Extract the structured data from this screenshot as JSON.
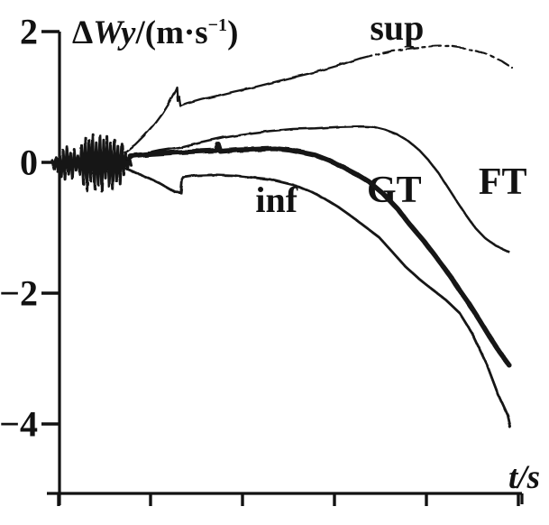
{
  "figure": {
    "background_color": "#ffffff",
    "ink_color": "#121212",
    "description": "Scanned line chart of velocity error bounds over time"
  },
  "chart_data": {
    "type": "line",
    "title": "ΔWy/(m·s⁻¹)",
    "title_parts": {
      "delta": "Δ",
      "variable": "Wy",
      "unit_pre": "/(m·s",
      "exponent": "−1",
      "unit_post": ")"
    },
    "xlabel": "t/s",
    "xlabel_parts": {
      "variable": "t",
      "unit": "/s"
    },
    "ylabel": "ΔWy/(m·s⁻¹)",
    "xlim": [
      -0.13,
      5.33
    ],
    "ylim": [
      -5.2,
      2.05
    ],
    "grid": false,
    "legend": "none (inline curve labels)",
    "x_axis": {
      "ticks": [
        0,
        1,
        2,
        3,
        4,
        5
      ],
      "tick_labels_shown": false
    },
    "y_axis": {
      "ticks": [
        {
          "v": 2,
          "label": "2"
        },
        {
          "v": 0,
          "label": "0"
        },
        {
          "v": -2,
          "label": "−2"
        },
        {
          "v": -4,
          "label": "−4"
        }
      ]
    },
    "series": [
      {
        "name": "noise",
        "role": "initial-noise-burst",
        "stroke_width": 3,
        "dash": "",
        "points": [
          [
            -0.07,
            0.03
          ],
          [
            -0.05,
            -0.1
          ],
          [
            -0.03,
            0.08
          ],
          [
            -0.01,
            -0.14
          ],
          [
            0.01,
            0.1
          ],
          [
            0.03,
            -0.22
          ],
          [
            0.05,
            0.18
          ],
          [
            0.07,
            -0.26
          ],
          [
            0.09,
            0.24
          ],
          [
            0.11,
            -0.18
          ],
          [
            0.13,
            0.14
          ],
          [
            0.15,
            -0.25
          ],
          [
            0.17,
            0.2
          ],
          [
            0.19,
            -0.12
          ],
          [
            0.21,
            0.1
          ],
          [
            0.23,
            -0.18
          ],
          [
            0.25,
            0.26
          ],
          [
            0.27,
            -0.33
          ],
          [
            0.29,
            0.38
          ],
          [
            0.31,
            -0.43
          ],
          [
            0.33,
            0.34
          ],
          [
            0.35,
            -0.28
          ],
          [
            0.37,
            0.43
          ],
          [
            0.39,
            -0.4
          ],
          [
            0.41,
            0.3
          ],
          [
            0.43,
            -0.34
          ],
          [
            0.45,
            0.41
          ],
          [
            0.47,
            -0.44
          ],
          [
            0.49,
            0.34
          ],
          [
            0.51,
            -0.24
          ],
          [
            0.53,
            0.39
          ],
          [
            0.55,
            -0.37
          ],
          [
            0.57,
            0.29
          ],
          [
            0.59,
            -0.41
          ],
          [
            0.61,
            0.34
          ],
          [
            0.63,
            -0.29
          ],
          [
            0.65,
            0.24
          ],
          [
            0.67,
            -0.33
          ],
          [
            0.69,
            0.28
          ],
          [
            0.71,
            -0.19
          ],
          [
            0.73,
            0.14
          ],
          [
            0.75,
            -0.11
          ],
          [
            0.77,
            0.08
          ],
          [
            0.79,
            -0.05
          ]
        ]
      },
      {
        "name": "sup",
        "role": "upper-bound",
        "stroke_width": 2.3,
        "dash": "",
        "points": [
          [
            0.72,
            0.15
          ],
          [
            0.83,
            0.27
          ],
          [
            0.93,
            0.41
          ],
          [
            1.03,
            0.57
          ],
          [
            1.13,
            0.76
          ],
          [
            1.21,
            0.94
          ],
          [
            1.27,
            1.1
          ],
          [
            1.285,
            1.15
          ],
          [
            1.295,
            0.94
          ],
          [
            1.31,
            1.01
          ],
          [
            1.325,
            0.86
          ],
          [
            1.4,
            0.9
          ],
          [
            1.55,
            0.96
          ],
          [
            1.7,
            1.01
          ],
          [
            1.9,
            1.08
          ],
          [
            2.1,
            1.14
          ],
          [
            2.3,
            1.21
          ],
          [
            2.55,
            1.3
          ],
          [
            2.79,
            1.38
          ],
          [
            3.04,
            1.48
          ],
          [
            3.28,
            1.59
          ]
        ]
      },
      {
        "name": "sup-tail",
        "role": "upper-bound-broken-stroke",
        "stroke_width": 2.3,
        "dash": "13 5 3 5",
        "points": [
          [
            3.28,
            1.59
          ],
          [
            3.45,
            1.65
          ],
          [
            3.62,
            1.7
          ],
          [
            3.8,
            1.74
          ],
          [
            3.95,
            1.76
          ],
          [
            4.1,
            1.775
          ],
          [
            4.25,
            1.78
          ],
          [
            4.4,
            1.75
          ],
          [
            4.55,
            1.7
          ],
          [
            4.7,
            1.63
          ],
          [
            4.82,
            1.55
          ],
          [
            4.93,
            1.45
          ]
        ]
      },
      {
        "name": "FT",
        "role": "estimate-curve",
        "stroke_width": 2.5,
        "dash": "",
        "points": [
          [
            0.74,
            0.05
          ],
          [
            0.9,
            0.12
          ],
          [
            1.1,
            0.18
          ],
          [
            1.32,
            0.23
          ],
          [
            1.55,
            0.31
          ],
          [
            1.81,
            0.39
          ],
          [
            2.06,
            0.44
          ],
          [
            2.3,
            0.48
          ],
          [
            2.55,
            0.51
          ],
          [
            2.79,
            0.52
          ],
          [
            3.04,
            0.54
          ],
          [
            3.28,
            0.55
          ],
          [
            3.43,
            0.54
          ],
          [
            3.55,
            0.5
          ],
          [
            3.68,
            0.43
          ],
          [
            3.8,
            0.33
          ],
          [
            3.92,
            0.19
          ],
          [
            4.02,
            0.04
          ],
          [
            4.12,
            -0.14
          ],
          [
            4.22,
            -0.35
          ],
          [
            4.32,
            -0.57
          ],
          [
            4.42,
            -0.78
          ],
          [
            4.53,
            -1.0
          ],
          [
            4.64,
            -1.16
          ],
          [
            4.76,
            -1.28
          ],
          [
            4.9,
            -1.37
          ]
        ]
      },
      {
        "name": "GT",
        "role": "reference-curve-thick",
        "stroke_width": 5.5,
        "dash": "",
        "points": [
          [
            0.78,
            0.1
          ],
          [
            1.0,
            0.13
          ],
          [
            1.25,
            0.15
          ],
          [
            1.5,
            0.17
          ],
          [
            1.71,
            0.18
          ],
          [
            1.735,
            0.28
          ],
          [
            1.76,
            0.17
          ],
          [
            1.95,
            0.19
          ],
          [
            2.15,
            0.2
          ],
          [
            2.35,
            0.21
          ],
          [
            2.5,
            0.19
          ],
          [
            2.65,
            0.15
          ],
          [
            2.79,
            0.11
          ],
          [
            2.94,
            0.03
          ],
          [
            3.09,
            -0.07
          ],
          [
            3.24,
            -0.18
          ],
          [
            3.38,
            -0.3
          ],
          [
            3.53,
            -0.48
          ],
          [
            3.68,
            -0.7
          ],
          [
            3.82,
            -0.95
          ],
          [
            3.97,
            -1.2
          ],
          [
            4.07,
            -1.38
          ],
          [
            4.22,
            -1.66
          ],
          [
            4.36,
            -1.95
          ],
          [
            4.46,
            -2.15
          ],
          [
            4.58,
            -2.42
          ],
          [
            4.68,
            -2.65
          ],
          [
            4.79,
            -2.89
          ],
          [
            4.9,
            -3.1
          ]
        ]
      },
      {
        "name": "inf",
        "role": "lower-bound",
        "stroke_width": 2.8,
        "dash": "",
        "points": [
          [
            0.74,
            -0.1
          ],
          [
            0.85,
            -0.17
          ],
          [
            0.98,
            -0.24
          ],
          [
            1.1,
            -0.32
          ],
          [
            1.2,
            -0.4
          ],
          [
            1.27,
            -0.455
          ],
          [
            1.33,
            -0.465
          ],
          [
            1.345,
            -0.23
          ],
          [
            1.5,
            -0.2
          ],
          [
            1.7,
            -0.19
          ],
          [
            1.9,
            -0.2
          ],
          [
            2.1,
            -0.23
          ],
          [
            2.3,
            -0.26
          ],
          [
            2.45,
            -0.31
          ],
          [
            2.6,
            -0.36
          ],
          [
            2.75,
            -0.45
          ],
          [
            2.89,
            -0.55
          ],
          [
            3.04,
            -0.68
          ],
          [
            3.19,
            -0.83
          ],
          [
            3.33,
            -0.98
          ],
          [
            3.48,
            -1.14
          ],
          [
            3.63,
            -1.37
          ],
          [
            3.77,
            -1.59
          ],
          [
            3.92,
            -1.78
          ],
          [
            4.05,
            -1.93
          ],
          [
            4.21,
            -2.1
          ],
          [
            4.36,
            -2.3
          ],
          [
            4.5,
            -2.62
          ],
          [
            4.66,
            -3.1
          ],
          [
            4.78,
            -3.55
          ],
          [
            4.88,
            -3.86
          ],
          [
            4.91,
            -4.05
          ]
        ]
      }
    ],
    "annotations": [
      {
        "text": "sup",
        "t": 3.68,
        "v": 2.06,
        "size": 40
      },
      {
        "text": "inf",
        "t": 2.37,
        "v": -0.57,
        "size": 40
      },
      {
        "text": "GT",
        "t": 3.65,
        "v": -0.43,
        "size": 42
      },
      {
        "text": "FT",
        "t": 4.83,
        "v": -0.3,
        "size": 42
      }
    ]
  }
}
